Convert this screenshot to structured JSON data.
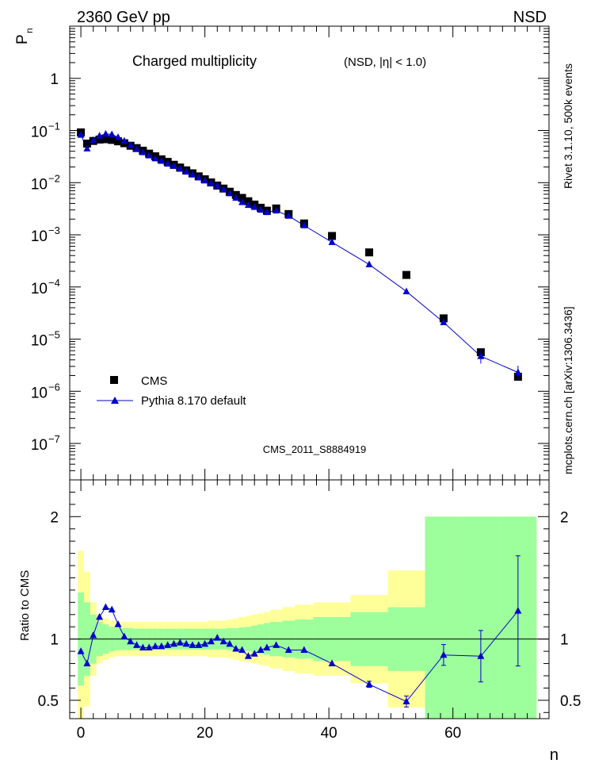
{
  "header": {
    "left_label": "2360 GeV pp",
    "right_label": "NSD",
    "side_label_top": "Rivet 3.1.10,  500k events",
    "side_label_bottom": "mcplots.cern.ch [arXiv:1306.3436]",
    "watermark": "CMS_2011_S8884919"
  },
  "chart_data": [
    {
      "type": "scatter",
      "title": "Charged multiplicity",
      "title_detail": "(NSD, |η| < 1.0)",
      "ylabel": "P",
      "ylabel_sub": "n",
      "yscale": "log",
      "ylim": [
        2e-08,
        10
      ],
      "xlim": [
        -1.8,
        75.5
      ],
      "y_ticks": [
        {
          "value": 1,
          "label": "1"
        },
        {
          "value": 0.1,
          "label": "10",
          "exp": "−1"
        },
        {
          "value": 0.01,
          "label": "10",
          "exp": "−2"
        },
        {
          "value": 0.001,
          "label": "10",
          "exp": "−3"
        },
        {
          "value": 0.0001,
          "label": "10",
          "exp": "−4"
        },
        {
          "value": 1e-05,
          "label": "10",
          "exp": "−5"
        },
        {
          "value": 1e-06,
          "label": "10",
          "exp": "−6"
        },
        {
          "value": 1e-07,
          "label": "10",
          "exp": "−7"
        }
      ],
      "legend": [
        {
          "name": "CMS",
          "marker": "square",
          "color": "#000000"
        },
        {
          "name": "Pythia 8.170 default",
          "marker": "triangle",
          "color": "#0000cc"
        }
      ],
      "series": [
        {
          "name": "CMS",
          "color": "#000000",
          "x": [
            0,
            1,
            2,
            3,
            4,
            5,
            6,
            7,
            8,
            9,
            10,
            11,
            12,
            13,
            14,
            15,
            16,
            17,
            18,
            19,
            20,
            21,
            22,
            23,
            24,
            25,
            26,
            27,
            28,
            29,
            30,
            31.5,
            33.5,
            36,
            40.5,
            46.5,
            52.5,
            58.5,
            64.5,
            70.5
          ],
          "y": [
            0.092,
            0.056,
            0.063,
            0.067,
            0.068,
            0.066,
            0.062,
            0.057,
            0.051,
            0.046,
            0.041,
            0.036,
            0.032,
            0.028,
            0.025,
            0.022,
            0.0195,
            0.0172,
            0.0151,
            0.0132,
            0.0116,
            0.0101,
            0.0088,
            0.0077,
            0.0067,
            0.0058,
            0.0051,
            0.0044,
            0.0038,
            0.0033,
            0.0029,
            0.0032,
            0.0025,
            0.00165,
            0.00095,
            0.00046,
            0.00017,
            2.5e-05,
            5.6e-06,
            1.9e-06
          ]
        },
        {
          "name": "Pythia 8.170 default",
          "color": "#0000cc",
          "x": [
            0,
            1,
            2,
            3,
            4,
            5,
            6,
            7,
            8,
            9,
            10,
            11,
            12,
            13,
            14,
            15,
            16,
            17,
            18,
            19,
            20,
            21,
            22,
            23,
            24,
            25,
            26,
            27,
            28,
            29,
            30,
            31.5,
            33.5,
            36,
            40.5,
            46.5,
            52.5,
            58.5,
            64.5,
            70.5
          ],
          "y": [
            0.082,
            0.045,
            0.065,
            0.079,
            0.086,
            0.084,
            0.074,
            0.063,
            0.052,
            0.044,
            0.038,
            0.033,
            0.029,
            0.026,
            0.023,
            0.0208,
            0.0183,
            0.0161,
            0.0142,
            0.0125,
            0.0109,
            0.0097,
            0.0087,
            0.0074,
            0.0062,
            0.0051,
            0.0042,
            0.0037,
            0.0034,
            0.003,
            0.0027,
            0.0029,
            0.0023,
            0.00151,
            0.00072,
            0.00027,
            8.2e-05,
            2.1e-05,
            4.7e-06,
            2.3e-06
          ]
        }
      ]
    },
    {
      "type": "scatter",
      "ylabel": "Ratio to CMS",
      "xlabel": "n",
      "ylim": [
        0.35,
        2.3
      ],
      "xlim": [
        -1.8,
        75.5
      ],
      "x_ticks": [
        {
          "value": 0,
          "label": "0"
        },
        {
          "value": 20,
          "label": "20"
        },
        {
          "value": 40,
          "label": "40"
        },
        {
          "value": 60,
          "label": "60"
        }
      ],
      "y_ticks": [
        {
          "value": 0.5,
          "label": "0.5"
        },
        {
          "value": 1,
          "label": "1"
        },
        {
          "value": 2,
          "label": "2"
        }
      ],
      "bands": {
        "edges": [
          -0.5,
          0.5,
          1.5,
          2.5,
          3.5,
          4.5,
          5.5,
          6.5,
          7.5,
          8.5,
          9.5,
          10.5,
          11.5,
          12.5,
          13.5,
          14.5,
          15.5,
          16.5,
          17.5,
          18.5,
          19.5,
          20.5,
          21.5,
          22.5,
          23.5,
          24.5,
          25.5,
          26.5,
          27.5,
          28.5,
          29.5,
          30.5,
          32.5,
          34.5,
          37.5,
          43.5,
          49.5,
          55.5,
          61.5,
          67.5,
          73.5
        ],
        "green": [
          0.38,
          0.3,
          0.2,
          0.14,
          0.12,
          0.1,
          0.09,
          0.09,
          0.09,
          0.085,
          0.085,
          0.085,
          0.085,
          0.085,
          0.085,
          0.085,
          0.085,
          0.085,
          0.085,
          0.085,
          0.085,
          0.085,
          0.085,
          0.085,
          0.09,
          0.09,
          0.095,
          0.1,
          0.11,
          0.12,
          0.13,
          0.14,
          0.15,
          0.16,
          0.18,
          0.22,
          0.26,
          1.0,
          1.0,
          1.0
        ],
        "yellow": [
          0.72,
          0.55,
          0.3,
          0.2,
          0.17,
          0.15,
          0.14,
          0.14,
          0.14,
          0.14,
          0.14,
          0.14,
          0.14,
          0.14,
          0.14,
          0.14,
          0.14,
          0.14,
          0.14,
          0.14,
          0.14,
          0.15,
          0.15,
          0.15,
          0.16,
          0.17,
          0.18,
          0.19,
          0.2,
          0.21,
          0.22,
          0.24,
          0.26,
          0.28,
          0.3,
          0.36,
          0.56,
          1.0,
          1.0,
          1.0
        ],
        "green_color": "#9cff9c",
        "yellow_color": "#ffff99"
      },
      "series": [
        {
          "name": "Pythia 8.170 default",
          "color": "#0000cc",
          "x": [
            0,
            1,
            2,
            3,
            4,
            5,
            6,
            7,
            8,
            9,
            10,
            11,
            12,
            13,
            14,
            15,
            16,
            17,
            18,
            19,
            20,
            21,
            22,
            23,
            24,
            25,
            26,
            27,
            28,
            29,
            30,
            31.5,
            33.5,
            36,
            40.5,
            46.5,
            52.5,
            58.5,
            64.5,
            70.5
          ],
          "y": [
            0.9,
            0.8,
            1.03,
            1.18,
            1.26,
            1.24,
            1.12,
            1.02,
            0.98,
            0.95,
            0.93,
            0.93,
            0.94,
            0.94,
            0.95,
            0.96,
            0.97,
            0.96,
            0.95,
            0.95,
            0.96,
            0.98,
            1.01,
            0.98,
            0.96,
            0.92,
            0.91,
            0.86,
            0.88,
            0.91,
            0.93,
            0.95,
            0.91,
            0.91,
            0.8,
            0.63,
            0.49,
            0.87,
            0.86,
            1.23
          ],
          "err": [
            0,
            0,
            0,
            0,
            0,
            0,
            0,
            0,
            0,
            0,
            0,
            0,
            0,
            0,
            0,
            0,
            0,
            0,
            0,
            0,
            0,
            0,
            0,
            0,
            0,
            0,
            0,
            0,
            0,
            0,
            0,
            0,
            0,
            0,
            0,
            0.025,
            0.045,
            0.085,
            0.21,
            0.45
          ]
        }
      ]
    }
  ]
}
